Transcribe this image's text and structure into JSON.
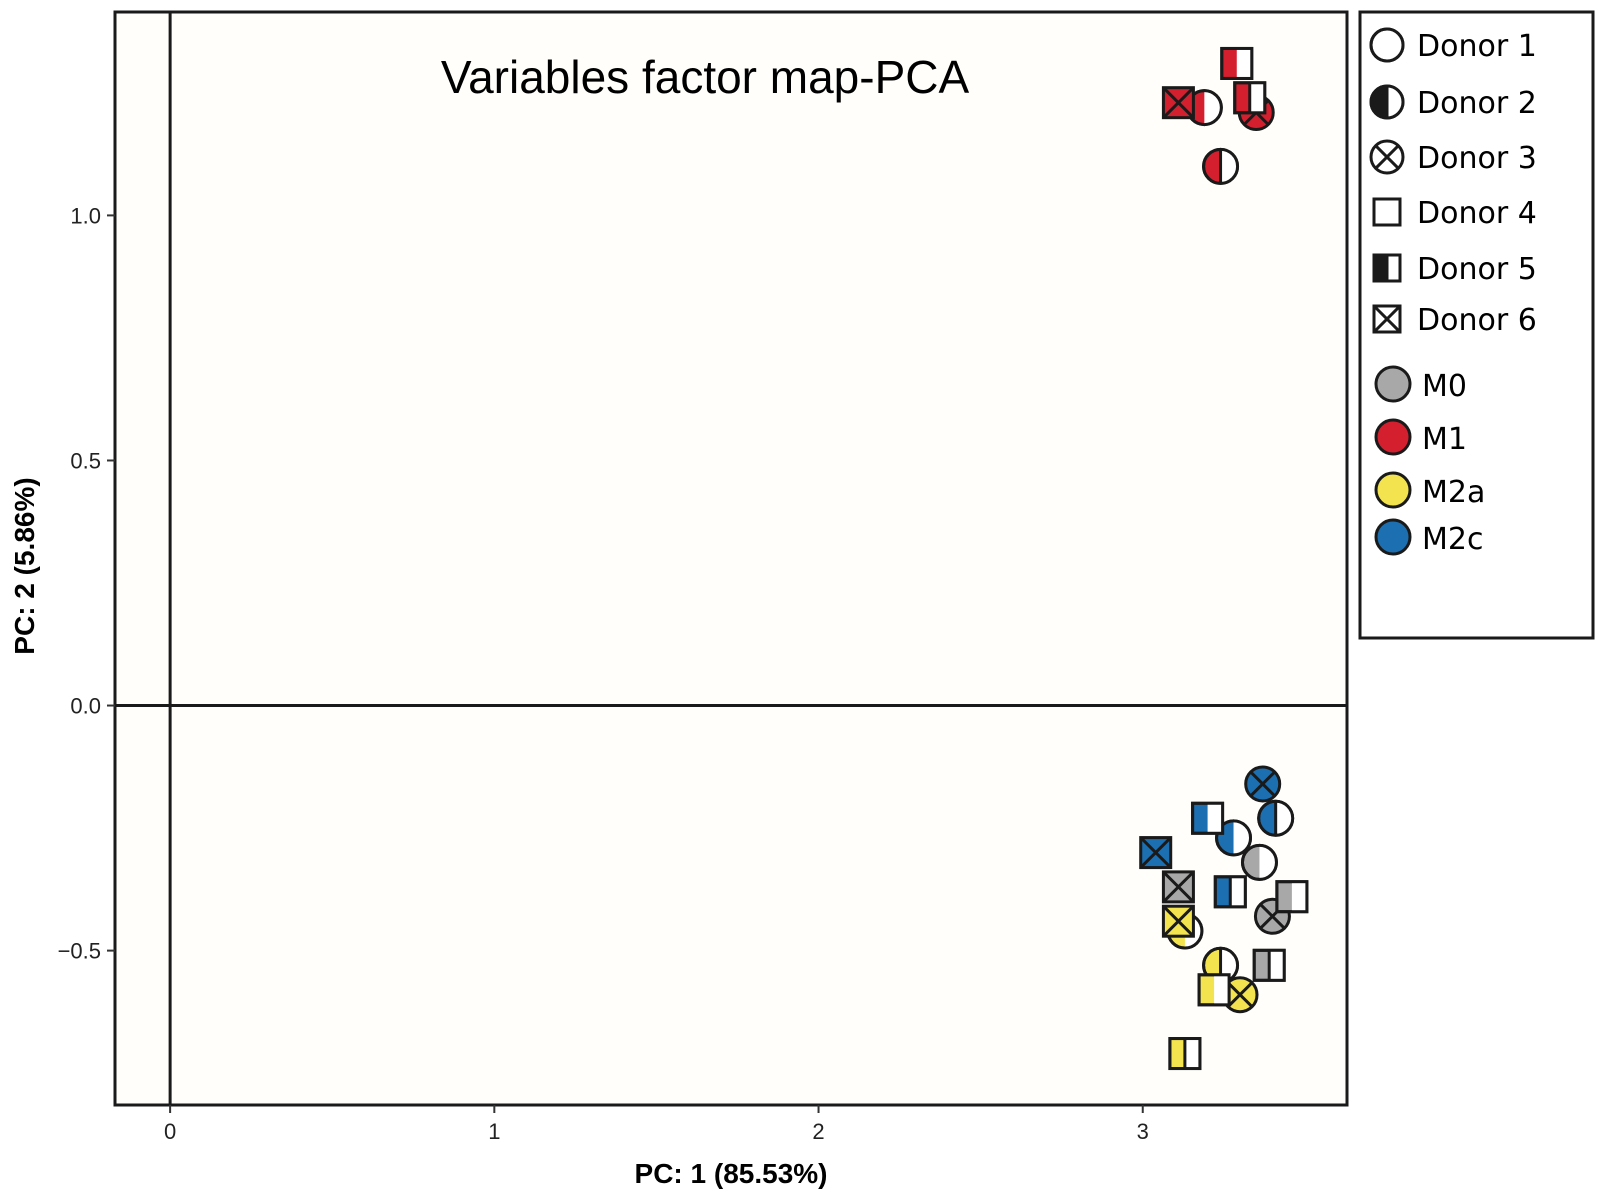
{
  "chart_data": {
    "type": "scatter",
    "title": "Variables factor map-PCA",
    "xlabel": "PC: 1 (85.53%)",
    "ylabel": "PC: 2 (5.86%)",
    "xlim": [
      -0.17,
      3.63
    ],
    "ylim": [
      -0.815,
      1.415
    ],
    "xticks": [
      0,
      1,
      2,
      3
    ],
    "yticks": [
      -0.5,
      0.0,
      0.5,
      1.0
    ],
    "xtick_labels": [
      "0",
      "1",
      "2",
      "3"
    ],
    "ytick_labels": [
      "−0.5",
      "0.0",
      "0.5",
      "1.0"
    ],
    "reference_lines": {
      "x": 0,
      "y": 0
    },
    "grid": false,
    "legend_position": "outside-right",
    "colors": {
      "M0": "#a8a8a8",
      "M1": "#d41f2f",
      "M2a": "#f2e34f",
      "M2c": "#1c6fb0"
    },
    "legend": {
      "donors": [
        {
          "label": "Donor 1",
          "shape": "circle-open"
        },
        {
          "label": "Donor 2",
          "shape": "circle-half"
        },
        {
          "label": "Donor 3",
          "shape": "circle-cross"
        },
        {
          "label": "Donor 4",
          "shape": "square-open"
        },
        {
          "label": "Donor 5",
          "shape": "square-half"
        },
        {
          "label": "Donor 6",
          "shape": "square-cross"
        }
      ],
      "groups": [
        {
          "label": "M0",
          "color": "#a8a8a8"
        },
        {
          "label": "M1",
          "color": "#d41f2f"
        },
        {
          "label": "M2a",
          "color": "#f2e34f"
        },
        {
          "label": "M2c",
          "color": "#1c6fb0"
        }
      ]
    },
    "points": [
      {
        "group": "M1",
        "donor": "Donor 1",
        "x": 3.19,
        "y": 1.22
      },
      {
        "group": "M1",
        "donor": "Donor 2",
        "x": 3.24,
        "y": 1.1
      },
      {
        "group": "M1",
        "donor": "Donor 3",
        "x": 3.35,
        "y": 1.21
      },
      {
        "group": "M1",
        "donor": "Donor 4",
        "x": 3.29,
        "y": 1.31
      },
      {
        "group": "M1",
        "donor": "Donor 5",
        "x": 3.33,
        "y": 1.24
      },
      {
        "group": "M1",
        "donor": "Donor 6",
        "x": 3.11,
        "y": 1.23
      },
      {
        "group": "M2c",
        "donor": "Donor 1",
        "x": 3.28,
        "y": -0.27
      },
      {
        "group": "M2c",
        "donor": "Donor 2",
        "x": 3.41,
        "y": -0.23
      },
      {
        "group": "M2c",
        "donor": "Donor 3",
        "x": 3.37,
        "y": -0.16
      },
      {
        "group": "M2c",
        "donor": "Donor 4",
        "x": 3.2,
        "y": -0.23
      },
      {
        "group": "M2c",
        "donor": "Donor 5",
        "x": 3.27,
        "y": -0.38
      },
      {
        "group": "M2c",
        "donor": "Donor 6",
        "x": 3.04,
        "y": -0.3
      },
      {
        "group": "M0",
        "donor": "Donor 1",
        "x": 3.36,
        "y": -0.32
      },
      {
        "group": "M0",
        "donor": "Donor 3",
        "x": 3.4,
        "y": -0.43
      },
      {
        "group": "M0",
        "donor": "Donor 4",
        "x": 3.46,
        "y": -0.39
      },
      {
        "group": "M0",
        "donor": "Donor 5",
        "x": 3.39,
        "y": -0.53
      },
      {
        "group": "M0",
        "donor": "Donor 6",
        "x": 3.11,
        "y": -0.37
      },
      {
        "group": "M2a",
        "donor": "Donor 1",
        "x": 3.13,
        "y": -0.46
      },
      {
        "group": "M2a",
        "donor": "Donor 2",
        "x": 3.24,
        "y": -0.53
      },
      {
        "group": "M2a",
        "donor": "Donor 3",
        "x": 3.3,
        "y": -0.59
      },
      {
        "group": "M2a",
        "donor": "Donor 4",
        "x": 3.22,
        "y": -0.58
      },
      {
        "group": "M2a",
        "donor": "Donor 5",
        "x": 3.13,
        "y": -0.71
      },
      {
        "group": "M2a",
        "donor": "Donor 6",
        "x": 3.11,
        "y": -0.44
      }
    ]
  }
}
